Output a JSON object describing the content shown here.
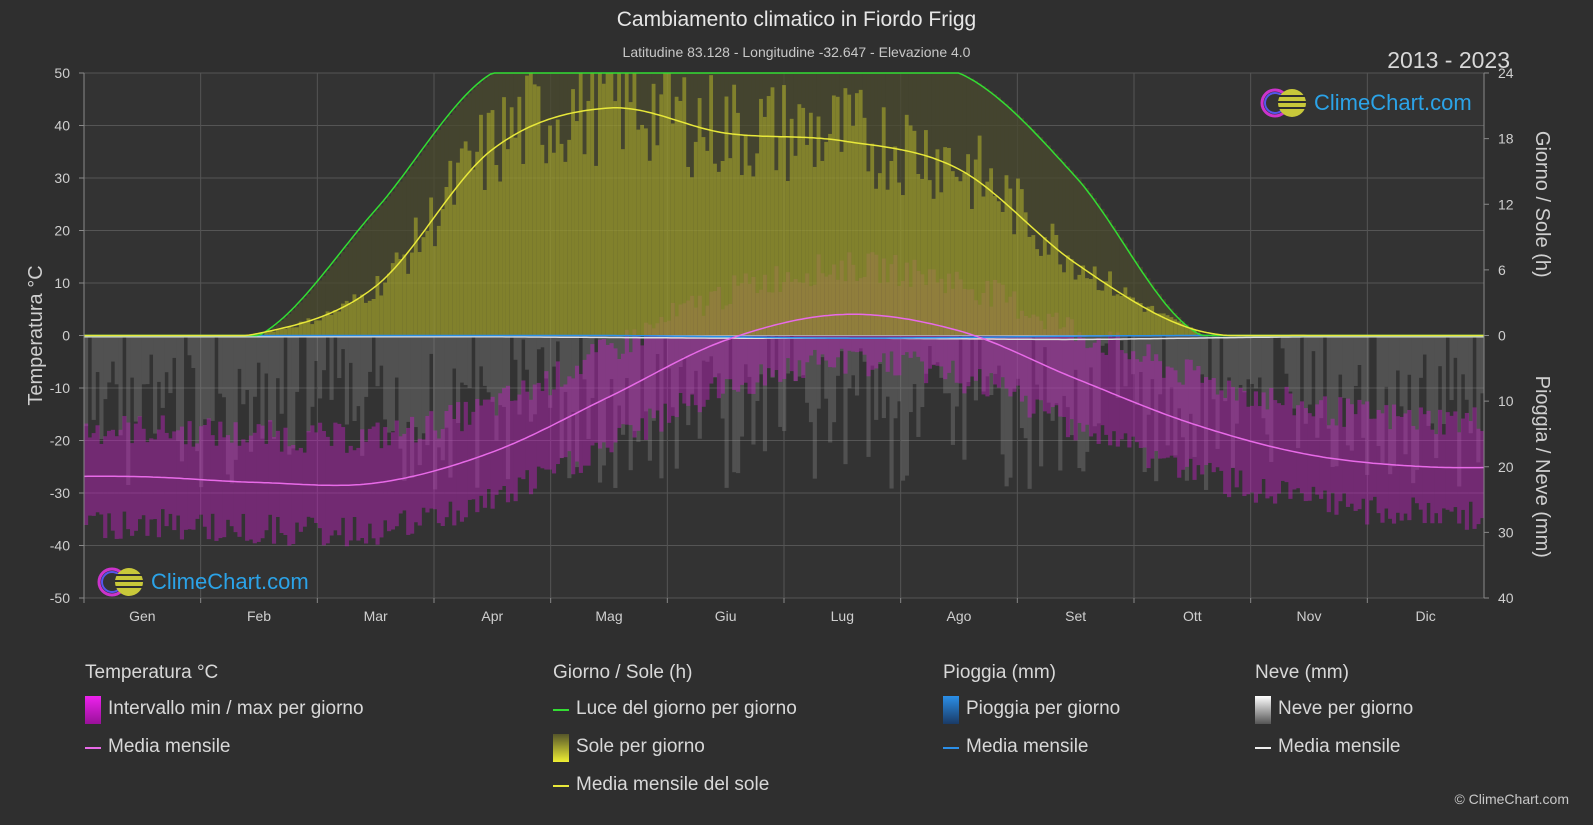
{
  "title": "Cambiamento climatico in Fiordo Frigg",
  "subtitle": "Latitudine 83.128 - Longitudine -32.647 - Elevazione 4.0",
  "years": "2013 - 2023",
  "logo_text": "ClimeChart.com",
  "copyright": "© ClimeChart.com",
  "colors": {
    "background": "#2f2f2f",
    "daylight": "#33dd33",
    "sunshine_mean": "#e8e83a",
    "sunshine_fill": "#9b9b2a",
    "temp_mean": "#e86ae8",
    "temp_range": "#c020c0",
    "rain": "#2b8fe8",
    "snow": "#bbbbbb",
    "logo": "#2ba3e8"
  },
  "legend": {
    "temperature": {
      "title": "Temperatura °C",
      "range": "Intervallo min / max per giorno",
      "mean": "Media mensile"
    },
    "sun": {
      "title": "Giorno / Sole (h)",
      "daylight": "Luce del giorno per giorno",
      "sunshine": "Sole per giorno",
      "mean": "Media mensile del sole"
    },
    "rain": {
      "title": "Pioggia (mm)",
      "daily": "Pioggia per giorno",
      "mean": "Media mensile"
    },
    "snow": {
      "title": "Neve (mm)",
      "daily": "Neve per giorno",
      "mean": "Media mensile"
    }
  },
  "chart_data": {
    "type": "line",
    "categories": [
      "Gen",
      "Feb",
      "Mar",
      "Apr",
      "Mag",
      "Giu",
      "Lug",
      "Ago",
      "Set",
      "Ott",
      "Nov",
      "Dic"
    ],
    "y_left": {
      "label": "Temperatura °C",
      "ylim": [
        -50,
        50
      ],
      "ticks": [
        50,
        40,
        30,
        20,
        10,
        0,
        -10,
        -20,
        -30,
        -40,
        -50
      ]
    },
    "y_right_top": {
      "label": "Giorno / Sole (h)",
      "ylim": [
        0,
        24
      ],
      "ticks": [
        24,
        18,
        12,
        6,
        0
      ]
    },
    "y_right_bottom": {
      "label": "Pioggia / Neve (mm)",
      "ylim": [
        0,
        40
      ],
      "ticks": [
        10,
        20,
        30,
        40
      ]
    },
    "grid": true,
    "series": [
      {
        "name": "Luce del giorno per giorno",
        "unit": "h",
        "values": [
          0,
          0,
          11.5,
          24,
          24,
          24,
          24,
          24,
          14.5,
          0.5,
          0,
          0
        ]
      },
      {
        "name": "Media mensile del sole",
        "unit": "h",
        "values": [
          0,
          0.2,
          4.5,
          17,
          20.8,
          18.5,
          17.8,
          15.2,
          6.6,
          0.6,
          0,
          0
        ]
      },
      {
        "name": "Media mensile",
        "unit": "°C",
        "values": [
          -26.9,
          -28.0,
          -28.1,
          -22.2,
          -11.7,
          -0.9,
          4.0,
          0.9,
          -8.2,
          -16.8,
          -22.7,
          -25.0
        ]
      },
      {
        "name": "Media mensile pioggia",
        "unit": "mm",
        "values": [
          0,
          0,
          0,
          0,
          0,
          0.2,
          0.4,
          0.3,
          0.1,
          0,
          0,
          0
        ]
      },
      {
        "name": "Media mensile neve",
        "unit": "mm",
        "values": [
          0.2,
          0.2,
          0.2,
          0.2,
          0.3,
          0.4,
          0.4,
          0.5,
          0.6,
          0.4,
          0.2,
          0.2
        ]
      }
    ]
  }
}
